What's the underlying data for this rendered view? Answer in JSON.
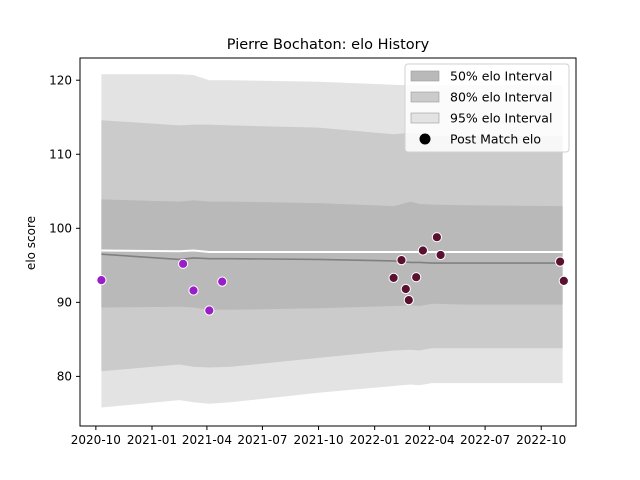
{
  "chart_data": {
    "type": "line",
    "title": "Pierre Bochaton: elo History",
    "xlabel": "",
    "ylabel": "elo score",
    "x_type": "date",
    "xlim": [
      "2020-09-05",
      "2022-11-27"
    ],
    "ylim": [
      73.3,
      123.0
    ],
    "x_ticks": [
      {
        "date": "2020-10-01",
        "label": "2020-10"
      },
      {
        "date": "2021-01-01",
        "label": "2021-01"
      },
      {
        "date": "2021-04-01",
        "label": "2021-04"
      },
      {
        "date": "2021-07-01",
        "label": "2021-07"
      },
      {
        "date": "2021-10-01",
        "label": "2021-10"
      },
      {
        "date": "2022-01-01",
        "label": "2022-01"
      },
      {
        "date": "2022-04-01",
        "label": "2022-04"
      },
      {
        "date": "2022-07-01",
        "label": "2022-07"
      },
      {
        "date": "2022-10-01",
        "label": "2022-10"
      }
    ],
    "y_ticks": [
      80,
      90,
      100,
      110,
      120
    ],
    "grid": false,
    "legend_position": "top-right",
    "colors": {
      "band95": "#e3e3e3",
      "band80": "#cbcbcb",
      "band50": "#b9b9b9",
      "mean_line": "#808080",
      "prior_line": "#ffffff",
      "point_early": "#9a1ec8",
      "point_late": "#5a1030",
      "point_edge": "#ffffff"
    },
    "series": [
      {
        "name": "95% elo Interval",
        "kind": "band",
        "x": [
          "2020-10-10",
          "2021-02-15",
          "2021-03-10",
          "2021-04-05",
          "2021-05-10",
          "2021-10-01",
          "2022-02-01",
          "2022-03-01",
          "2022-03-15",
          "2022-04-05",
          "2022-06-01",
          "2022-11-05"
        ],
        "lower": [
          75.8,
          76.8,
          76.5,
          76.3,
          76.5,
          77.8,
          78.7,
          78.9,
          78.8,
          79.1,
          79.1,
          79.1
        ],
        "upper": [
          120.8,
          120.8,
          120.7,
          120.0,
          120.0,
          119.8,
          119.4,
          119.3,
          119.3,
          119.3,
          119.3,
          119.3
        ]
      },
      {
        "name": "80% elo Interval",
        "kind": "band",
        "x": [
          "2020-10-10",
          "2021-02-15",
          "2021-03-10",
          "2021-04-05",
          "2021-05-10",
          "2021-10-01",
          "2022-02-01",
          "2022-03-01",
          "2022-03-15",
          "2022-04-05",
          "2022-06-01",
          "2022-11-05"
        ],
        "lower": [
          80.7,
          81.6,
          81.3,
          81.2,
          81.3,
          82.5,
          83.5,
          83.6,
          83.5,
          83.8,
          83.8,
          83.8
        ],
        "upper": [
          114.6,
          113.9,
          114.0,
          114.0,
          113.9,
          113.6,
          112.7,
          112.9,
          112.7,
          112.5,
          112.5,
          112.5
        ]
      },
      {
        "name": "50% elo Interval",
        "kind": "band",
        "x": [
          "2020-10-10",
          "2021-02-15",
          "2021-03-10",
          "2021-04-05",
          "2021-05-10",
          "2021-10-01",
          "2022-02-01",
          "2022-03-01",
          "2022-03-15",
          "2022-04-05",
          "2022-06-01",
          "2022-11-05"
        ],
        "lower": [
          89.3,
          89.4,
          89.3,
          89.0,
          89.0,
          89.2,
          89.5,
          89.6,
          89.5,
          89.8,
          89.7,
          89.7
        ],
        "upper": [
          103.9,
          103.6,
          103.8,
          103.6,
          103.6,
          103.4,
          103.0,
          103.6,
          103.3,
          103.2,
          103.1,
          103.0
        ]
      },
      {
        "name": "Mean elo",
        "kind": "line",
        "x": [
          "2020-10-10",
          "2021-02-15",
          "2021-03-10",
          "2021-04-05",
          "2021-05-10",
          "2021-10-01",
          "2022-02-01",
          "2022-03-01",
          "2022-03-15",
          "2022-04-05",
          "2022-06-01",
          "2022-11-05"
        ],
        "y": [
          96.5,
          95.8,
          96.0,
          95.9,
          95.9,
          95.8,
          95.6,
          95.4,
          95.4,
          95.3,
          95.3,
          95.3
        ]
      },
      {
        "name": "Prior elo",
        "kind": "line",
        "x": [
          "2020-10-10",
          "2021-02-15",
          "2021-03-10",
          "2021-04-05",
          "2021-05-10",
          "2021-10-01",
          "2022-02-01",
          "2022-03-01",
          "2022-03-15",
          "2022-04-05",
          "2022-06-01",
          "2022-11-05"
        ],
        "y": [
          97.0,
          96.9,
          97.0,
          96.8,
          96.8,
          96.8,
          96.8,
          96.8,
          96.8,
          96.8,
          96.8,
          96.8
        ]
      },
      {
        "name": "Post Match elo",
        "kind": "scatter",
        "points": [
          {
            "x": "2020-10-10",
            "y": 93.0,
            "group": "early"
          },
          {
            "x": "2021-02-21",
            "y": 95.2,
            "group": "early"
          },
          {
            "x": "2021-03-10",
            "y": 91.6,
            "group": "early"
          },
          {
            "x": "2021-04-05",
            "y": 88.9,
            "group": "early"
          },
          {
            "x": "2021-04-26",
            "y": 92.8,
            "group": "early"
          },
          {
            "x": "2022-02-01",
            "y": 93.3,
            "group": "late"
          },
          {
            "x": "2022-02-14",
            "y": 95.7,
            "group": "late"
          },
          {
            "x": "2022-02-21",
            "y": 91.8,
            "group": "late"
          },
          {
            "x": "2022-02-26",
            "y": 90.3,
            "group": "late"
          },
          {
            "x": "2022-03-10",
            "y": 93.4,
            "group": "late"
          },
          {
            "x": "2022-03-21",
            "y": 97.0,
            "group": "late"
          },
          {
            "x": "2022-04-13",
            "y": 98.8,
            "group": "late"
          },
          {
            "x": "2022-04-19",
            "y": 96.4,
            "group": "late"
          },
          {
            "x": "2022-11-01",
            "y": 95.5,
            "group": "late"
          },
          {
            "x": "2022-11-07",
            "y": 92.9,
            "group": "late"
          }
        ]
      }
    ],
    "legend": [
      {
        "label": "50% elo Interval",
        "swatch": "band50"
      },
      {
        "label": "80% elo Interval",
        "swatch": "band80"
      },
      {
        "label": "95% elo Interval",
        "swatch": "band95"
      },
      {
        "label": "Post Match elo",
        "swatch": "dot"
      }
    ]
  }
}
